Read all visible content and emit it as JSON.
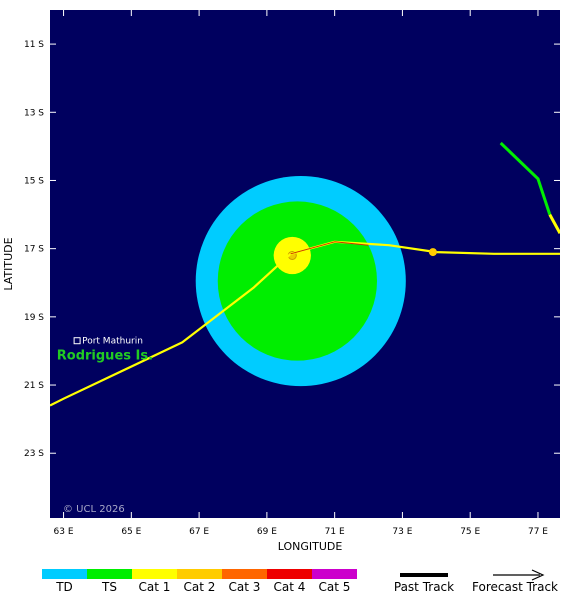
{
  "map": {
    "xlabel": "LONGITUDE",
    "ylabel": "LATITUDE",
    "lon_range": [
      62.6,
      77.65
    ],
    "lat_range": [
      10.0,
      24.9
    ],
    "lon_ticks": [
      63,
      65,
      67,
      69,
      71,
      73,
      75,
      77
    ],
    "lon_tick_labels": [
      "63 E",
      "65 E",
      "67 E",
      "69 E",
      "71 E",
      "73 E",
      "75 E",
      "77 E"
    ],
    "lat_ticks": [
      11,
      13,
      15,
      17,
      19,
      21,
      23
    ],
    "lat_tick_labels": [
      "11 S",
      "13 S",
      "15 S",
      "17 S",
      "19 S",
      "21 S",
      "23 S"
    ],
    "background_color": "#00005f",
    "place": {
      "name": "Port Mathurin",
      "lon": 63.4,
      "lat": 19.7
    },
    "island": {
      "name": "Rodrigues Is.",
      "lon": 62.8,
      "lat": 20.1
    },
    "copyright": "© UCL 2026"
  },
  "storm": {
    "wind_radii": [
      {
        "category": "TD",
        "lon": 70.0,
        "lat": 17.95,
        "radius_deg": 3.1,
        "color": "#00ccff"
      },
      {
        "category": "TS",
        "lon": 69.9,
        "lat": 17.95,
        "radius_deg": 2.35,
        "color": "#00ee00"
      },
      {
        "category": "Cat 1",
        "lon": 69.75,
        "lat": 17.2,
        "radius_deg": 0.55,
        "color": "#ffff00"
      }
    ],
    "center": {
      "lon": 69.75,
      "lat": 17.2
    },
    "tracks": [
      {
        "name": "main",
        "color": "#ffff00",
        "points": [
          [
            62.6,
            21.6
          ],
          [
            63.0,
            21.4
          ],
          [
            66.5,
            19.75
          ],
          [
            68.6,
            18.15
          ],
          [
            69.7,
            17.15
          ],
          [
            71.0,
            16.8
          ],
          [
            72.6,
            16.9
          ],
          [
            74.0,
            17.1
          ],
          [
            75.7,
            17.15
          ],
          [
            77.65,
            17.15
          ]
        ]
      },
      {
        "name": "main-inner",
        "color": "#cc3300",
        "points": [
          [
            69.7,
            17.15
          ],
          [
            71.0,
            16.8
          ],
          [
            72.0,
            16.9
          ]
        ]
      },
      {
        "name": "upper-right",
        "color": "#00ee00",
        "points": [
          [
            75.9,
            13.9
          ],
          [
            77.0,
            14.95
          ],
          [
            77.35,
            16.0
          ]
        ]
      },
      {
        "name": "upper-right-tail",
        "color": "#ffff00",
        "points": [
          [
            77.35,
            16.0
          ],
          [
            77.65,
            16.55
          ]
        ]
      }
    ],
    "marker": {
      "lon": 73.9,
      "lat": 17.1,
      "color": "#ffcc00"
    }
  },
  "legend": {
    "scale": [
      {
        "label": "TD",
        "color": "#00ccff"
      },
      {
        "label": "TS",
        "color": "#00ee00"
      },
      {
        "label": "Cat 1",
        "color": "#ffff00"
      },
      {
        "label": "Cat 2",
        "color": "#ffcc00"
      },
      {
        "label": "Cat 3",
        "color": "#ff6600"
      },
      {
        "label": "Cat 4",
        "color": "#ee0000"
      },
      {
        "label": "Cat 5",
        "color": "#cc00cc"
      }
    ],
    "past_track_label": "Past Track",
    "forecast_track_label": "Forecast Track"
  }
}
